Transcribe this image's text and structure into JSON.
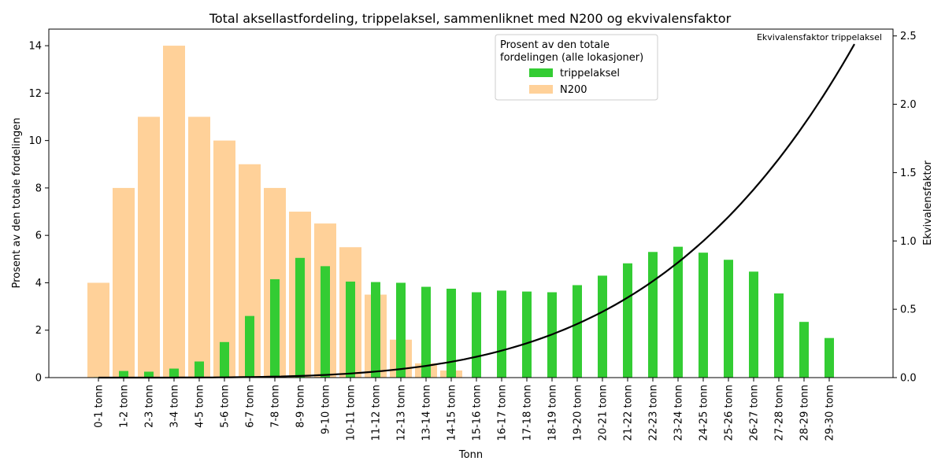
{
  "chart_data": {
    "type": "bar",
    "title": "Total aksellastfordeling, trippelaksel, sammenliknet med N200 og ekvivalensfaktor",
    "xlabel": "Tonn",
    "ylabel": "Prosent av den totale fordelingen",
    "ylabel_right": "Ekvivalensfaktor",
    "ylim": [
      0,
      14.7
    ],
    "ylim_right": [
      0,
      2.55
    ],
    "yticks": [
      0,
      2,
      4,
      6,
      8,
      10,
      12,
      14
    ],
    "yticks_right": [
      "0.0",
      "0.5",
      "1.0",
      "1.5",
      "2.0",
      "2.5"
    ],
    "categories": [
      "0-1 tonn",
      "1-2 tonn",
      "2-3 tonn",
      "3-4 tonn",
      "4-5 tonn",
      "5-6 tonn",
      "6-7 tonn",
      "7-8 tonn",
      "8-9 tonn",
      "9-10 tonn",
      "10-11 tonn",
      "11-12 tonn",
      "12-13 tonn",
      "13-14 tonn",
      "14-15 tonn",
      "15-16 tonn",
      "16-17 tonn",
      "17-18 tonn",
      "18-19 tonn",
      "19-20 tonn",
      "20-21 tonn",
      "21-22 tonn",
      "22-23 tonn",
      "23-24 tonn",
      "24-25 tonn",
      "25-26 tonn",
      "26-27 tonn",
      "27-28 tonn",
      "28-29 tonn",
      "29-30 tonn"
    ],
    "legend": {
      "title_lines": [
        "Prosent av den totale",
        "fordelingen (alle lokasjoner)"
      ],
      "placement": "upper-center"
    },
    "series": [
      {
        "name": "N200",
        "kind": "bar",
        "color": "#ffd199",
        "values": [
          4.0,
          8.0,
          11.0,
          14.0,
          11.0,
          10.0,
          9.0,
          8.0,
          7.0,
          6.5,
          5.5,
          3.5,
          1.6,
          0.6,
          0.3,
          0,
          0,
          0,
          0,
          0,
          0,
          0,
          0,
          0,
          0,
          0,
          0,
          0,
          0,
          0
        ]
      },
      {
        "name": "trippelaksel",
        "kind": "bar",
        "color": "#33cc33",
        "values": [
          0.02,
          0.28,
          0.25,
          0.38,
          0.68,
          1.5,
          2.6,
          4.15,
          5.05,
          4.7,
          4.05,
          4.03,
          4.0,
          3.83,
          3.75,
          3.6,
          3.67,
          3.63,
          3.6,
          3.9,
          4.3,
          4.82,
          5.3,
          5.52,
          5.27,
          4.97,
          4.47,
          3.55,
          2.35,
          1.67
        ]
      }
    ],
    "curve": {
      "name": "Ekvivalensfaktor trippelaksel",
      "axis": "right",
      "color": "#000000",
      "x_range": [
        0,
        30
      ],
      "y_at_end": 2.44,
      "exponent": 4
    }
  }
}
